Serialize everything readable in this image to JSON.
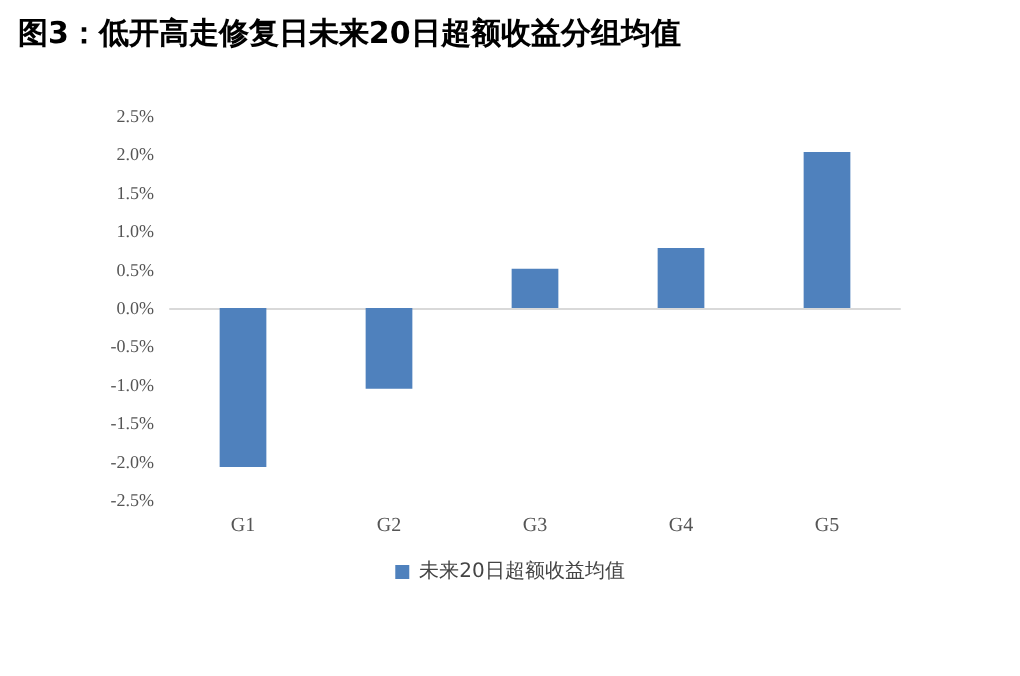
{
  "chart_data": {
    "type": "bar",
    "title": "图3：低开高走修复日未来20日超额收益分组均值",
    "categories": [
      "G1",
      "G2",
      "G3",
      "G4",
      "G5"
    ],
    "series": [
      {
        "name": "未来20日超额收益均值",
        "color": "#4f81bd",
        "values": [
          -2.07,
          -1.05,
          0.51,
          0.78,
          2.03
        ]
      }
    ],
    "ylim": [
      -2.5,
      2.5
    ],
    "yticks": [
      {
        "value": -2.5,
        "label": "-2.5%"
      },
      {
        "value": -2.0,
        "label": "-2.0%"
      },
      {
        "value": -1.5,
        "label": "-1.5%"
      },
      {
        "value": -1.0,
        "label": "-1.0%"
      },
      {
        "value": -0.5,
        "label": "-0.5%"
      },
      {
        "value": 0,
        "label": "0.0%"
      },
      {
        "value": 0.5,
        "label": "0.5%"
      },
      {
        "value": 1.0,
        "label": "1.0%"
      },
      {
        "value": 1.5,
        "label": "1.5%"
      },
      {
        "value": 2.0,
        "label": "2.0%"
      },
      {
        "value": 2.5,
        "label": "2.5%"
      }
    ],
    "legend": "bottom"
  }
}
